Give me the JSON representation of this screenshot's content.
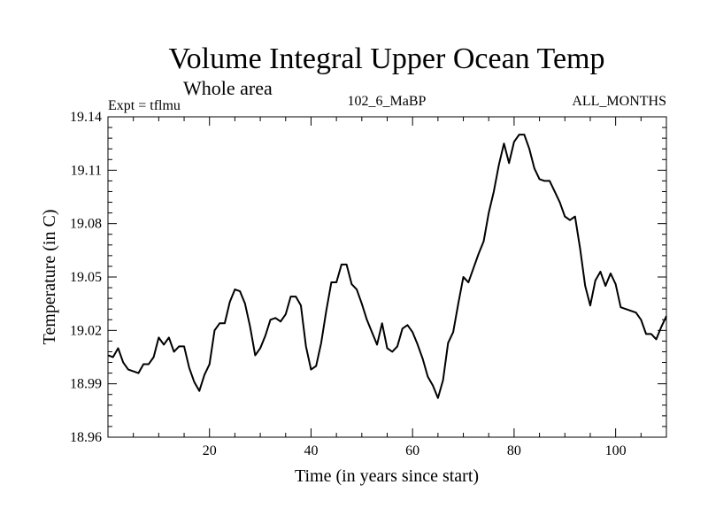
{
  "chart_data": {
    "type": "line",
    "title": "Volume Integral Upper Ocean Temp",
    "subtitle": "Whole area",
    "experiment_label": "Expt = tflmu",
    "run_label": "102_6_MaBP",
    "months_label": "ALL_MONTHS",
    "xlabel": "Time (in years since start)",
    "ylabel": "Temperature (in C)",
    "xlim": [
      0,
      110
    ],
    "ylim": [
      18.96,
      19.14
    ],
    "xticks": [
      20,
      40,
      60,
      80,
      100
    ],
    "yticks": [
      18.96,
      18.99,
      19.02,
      19.05,
      19.08,
      19.11,
      19.14
    ],
    "grid": false,
    "line_color": "#000000",
    "series": [
      {
        "name": "tflmu",
        "x": [
          0,
          1,
          2,
          3,
          4,
          5,
          6,
          7,
          8,
          9,
          10,
          11,
          12,
          13,
          14,
          15,
          16,
          17,
          18,
          19,
          20,
          21,
          22,
          23,
          24,
          25,
          26,
          27,
          28,
          29,
          30,
          31,
          32,
          33,
          34,
          35,
          36,
          37,
          38,
          39,
          40,
          41,
          42,
          43,
          44,
          45,
          46,
          47,
          48,
          49,
          50,
          51,
          52,
          53,
          54,
          55,
          56,
          57,
          58,
          59,
          60,
          61,
          62,
          63,
          64,
          65,
          66,
          67,
          68,
          69,
          70,
          71,
          72,
          73,
          74,
          75,
          76,
          77,
          78,
          79,
          80,
          81,
          82,
          83,
          84,
          85,
          86,
          87,
          88,
          89,
          90,
          91,
          92,
          93,
          94,
          95,
          96,
          97,
          98,
          99,
          100,
          101,
          102,
          103,
          104,
          105,
          106,
          107,
          108,
          109,
          110
        ],
        "y": [
          19.006,
          19.005,
          19.01,
          19.002,
          18.998,
          18.997,
          18.996,
          19.001,
          19.001,
          19.005,
          19.016,
          19.012,
          19.016,
          19.008,
          19.011,
          19.011,
          18.999,
          18.991,
          18.986,
          18.995,
          19.001,
          19.02,
          19.024,
          19.024,
          19.036,
          19.043,
          19.042,
          19.035,
          19.022,
          19.006,
          19.01,
          19.017,
          19.026,
          19.027,
          19.025,
          19.029,
          19.039,
          19.039,
          19.034,
          19.011,
          18.998,
          19.0,
          19.013,
          19.031,
          19.047,
          19.047,
          19.057,
          19.057,
          19.046,
          19.043,
          19.035,
          19.026,
          19.019,
          19.012,
          19.024,
          19.01,
          19.008,
          19.011,
          19.021,
          19.023,
          19.019,
          19.012,
          19.004,
          18.994,
          18.989,
          18.982,
          18.992,
          19.013,
          19.019,
          19.035,
          19.05,
          19.047,
          19.055,
          19.063,
          19.07,
          19.086,
          19.098,
          19.113,
          19.125,
          19.114,
          19.126,
          19.13,
          19.13,
          19.122,
          19.111,
          19.105,
          19.104,
          19.104,
          19.098,
          19.092,
          19.084,
          19.082,
          19.084,
          19.066,
          19.045,
          19.034,
          19.048,
          19.053,
          19.045,
          19.052,
          19.046,
          19.033,
          19.032,
          19.031,
          19.03,
          19.026,
          19.018,
          19.018,
          19.015,
          19.022,
          19.028
        ]
      }
    ]
  }
}
